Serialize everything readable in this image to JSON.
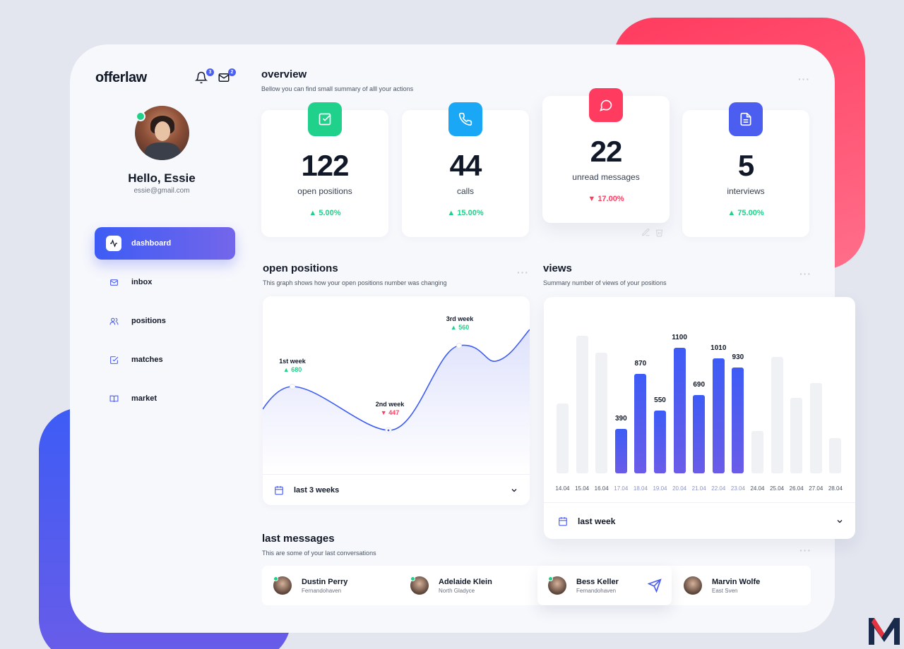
{
  "app": {
    "logo": "offerlaw",
    "notif_count": "3",
    "mail_count": "2"
  },
  "user": {
    "greeting": "Hello, Essie",
    "email": "essie@gmail.com"
  },
  "sidebar": {
    "items": [
      {
        "label": "dashboard",
        "icon": "activity-icon",
        "active": true
      },
      {
        "label": "inbox",
        "icon": "mail-icon",
        "active": false
      },
      {
        "label": "positions",
        "icon": "users-icon",
        "active": false
      },
      {
        "label": "matches",
        "icon": "check-square-icon",
        "active": false
      },
      {
        "label": "market",
        "icon": "book-icon",
        "active": false
      }
    ]
  },
  "overview": {
    "title": "overview",
    "subtitle": "Bellow you can find small summary of alll your actions",
    "stats": [
      {
        "value": "122",
        "label": "open positions",
        "change": "5.00%",
        "direction": "up",
        "icon": "check-square-icon",
        "color": "#1fd18a"
      },
      {
        "value": "44",
        "label": "calls",
        "change": "15.00%",
        "direction": "up",
        "icon": "phone-icon",
        "color": "#1aa7f5"
      },
      {
        "value": "22",
        "label": "unread messages",
        "change": "17.00%",
        "direction": "down",
        "icon": "chat-icon",
        "color": "#ff3b5f"
      },
      {
        "value": "5",
        "label": "interviews",
        "change": "75.00%",
        "direction": "up",
        "icon": "document-icon",
        "color": "#4b5ef0"
      }
    ]
  },
  "open_positions": {
    "title": "open positions",
    "subtitle": "This graph shows how your open positions number was changing",
    "range_label": "last 3 weeks",
    "points": [
      {
        "label": "1st week",
        "value": "680",
        "direction": "up"
      },
      {
        "label": "2nd week",
        "value": "447",
        "direction": "down"
      },
      {
        "label": "3rd week",
        "value": "560",
        "direction": "up"
      }
    ]
  },
  "views": {
    "title": "views",
    "subtitle": "Summary number of views of your positions",
    "range_label": "last week"
  },
  "chart_data": {
    "type": "bar",
    "categories": [
      "14.04",
      "15.04",
      "16.04",
      "17.04",
      "18.04",
      "19.04",
      "20.04",
      "21.04",
      "22.04",
      "23.04",
      "24.04",
      "25.04",
      "26.04",
      "27.04",
      "28.04"
    ],
    "values": [
      610,
      1210,
      1060,
      390,
      870,
      550,
      1100,
      690,
      1010,
      930,
      370,
      1020,
      660,
      790,
      310
    ],
    "highlighted": [
      false,
      false,
      false,
      true,
      true,
      true,
      true,
      true,
      true,
      true,
      false,
      false,
      false,
      false,
      false
    ],
    "labeled_values": [
      "390",
      "870",
      "550",
      "1100",
      "690",
      "1010",
      "930"
    ],
    "ylim": [
      0,
      1300
    ],
    "colors": {
      "active": "#4b5ef0",
      "inactive": "#f0f1f5"
    }
  },
  "last_messages": {
    "title": "last messages",
    "subtitle": "This are some of your last conversations",
    "items": [
      {
        "name": "Dustin Perry",
        "location": "Fernandohaven",
        "online": true
      },
      {
        "name": "Adelaide Klein",
        "location": "North Gladyce",
        "online": true
      },
      {
        "name": "Bess Keller",
        "location": "Fernandohaven",
        "online": true
      },
      {
        "name": "Marvin Wolfe",
        "location": "East Sven",
        "online": true
      }
    ]
  }
}
